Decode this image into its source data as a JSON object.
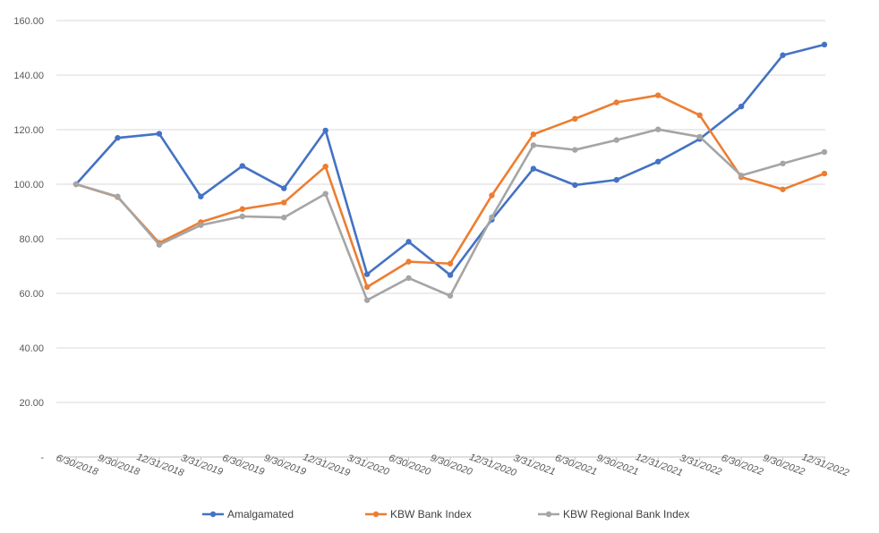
{
  "chart_data": {
    "type": "line",
    "title": "",
    "xlabel": "",
    "ylabel": "",
    "ylim": [
      0,
      160
    ],
    "y_ticks": [
      {
        "value": 0,
        "label": "-"
      },
      {
        "value": 20,
        "label": "20.00"
      },
      {
        "value": 40,
        "label": "40.00"
      },
      {
        "value": 60,
        "label": "60.00"
      },
      {
        "value": 80,
        "label": "80.00"
      },
      {
        "value": 100,
        "label": "100.00"
      },
      {
        "value": 120,
        "label": "120.00"
      },
      {
        "value": 140,
        "label": "140.00"
      },
      {
        "value": 160,
        "label": "160.00"
      }
    ],
    "grid": true,
    "legend_position": "bottom",
    "categories": [
      "6/30/2018",
      "9/30/2018",
      "12/31/2018",
      "3/31/2019",
      "6/30/2019",
      "9/30/2019",
      "12/31/2019",
      "3/31/2020",
      "6/30/2020",
      "9/30/2020",
      "12/31/2020",
      "3/31/2021",
      "6/30/2021",
      "9/30/2021",
      "12/31/2021",
      "3/31/2022",
      "6/30/2022",
      "9/30/2022",
      "12/31/2022"
    ],
    "series": [
      {
        "name": "Amalgamated",
        "color": "#4472c4",
        "values": [
          100.0,
          117.0,
          118.5,
          95.5,
          106.7,
          98.5,
          119.7,
          67.0,
          78.9,
          66.7,
          87.0,
          105.7,
          99.7,
          101.6,
          108.3,
          116.6,
          128.5,
          147.3,
          151.2
        ]
      },
      {
        "name": "KBW Bank Index",
        "color": "#ed7d31",
        "values": [
          100.0,
          95.3,
          78.5,
          86.1,
          90.9,
          93.3,
          106.5,
          62.3,
          71.6,
          70.9,
          95.9,
          118.3,
          124.0,
          130.0,
          132.6,
          125.3,
          102.6,
          98.1,
          103.9
        ]
      },
      {
        "name": "KBW Regional Bank Index",
        "color": "#a5a5a5",
        "values": [
          100.0,
          95.5,
          77.8,
          85.0,
          88.2,
          87.8,
          96.5,
          57.5,
          65.6,
          59.1,
          87.9,
          114.3,
          112.6,
          116.2,
          120.1,
          117.4,
          103.2,
          107.6,
          111.8
        ]
      }
    ]
  }
}
